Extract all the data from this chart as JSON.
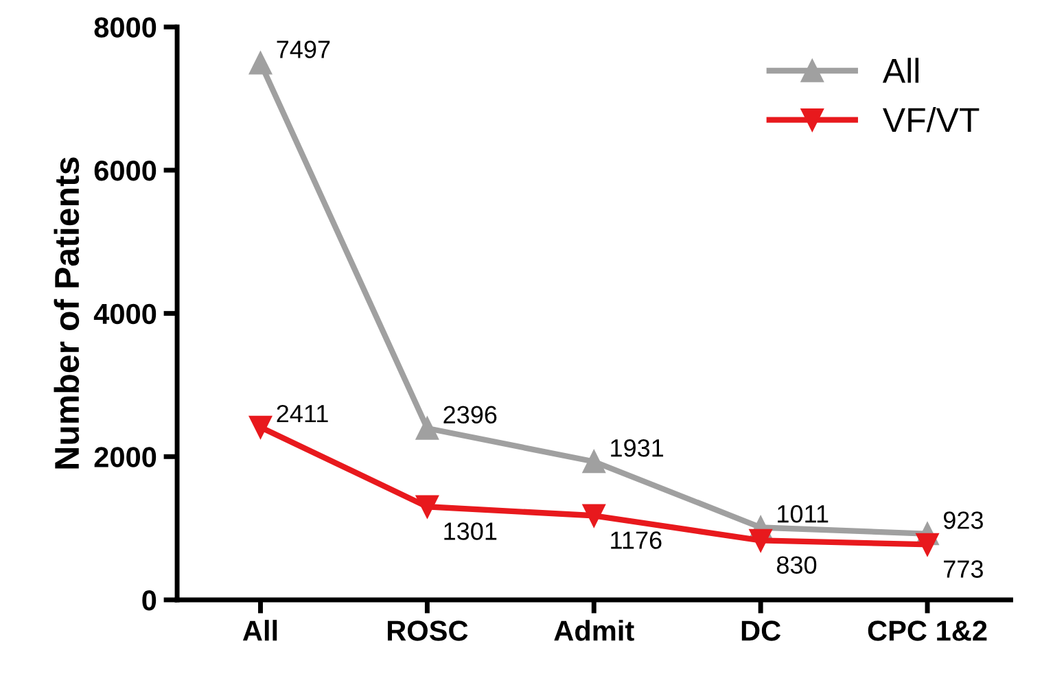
{
  "chart_data": {
    "type": "line",
    "ylabel": "Number of Patients",
    "categories": [
      "All",
      "ROSC",
      "Admit",
      "DC",
      "CPC 1&2"
    ],
    "series": [
      {
        "name": "All",
        "color": "#a0a0a0",
        "marker": "triangle",
        "values": [
          7497,
          2396,
          1931,
          1011,
          923
        ]
      },
      {
        "name": "VF/VT",
        "color": "#e8191d",
        "marker": "triangle_down",
        "values": [
          2411,
          1301,
          1176,
          830,
          773
        ]
      }
    ],
    "ylim": [
      0,
      8000
    ],
    "yticks": [
      0,
      2000,
      4000,
      6000,
      8000
    ],
    "data_labels": true,
    "legend": "top right",
    "grid": false,
    "line_style": "solid"
  }
}
